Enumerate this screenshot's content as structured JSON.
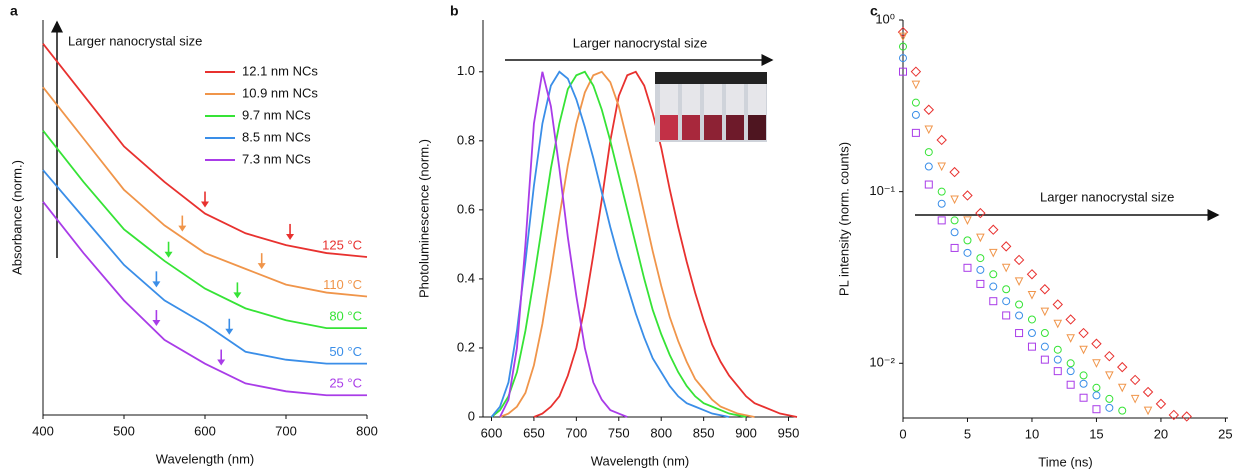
{
  "chart_data": [
    {
      "panel": "a",
      "type": "line",
      "xlabel": "Wavelength (nm)",
      "ylabel": "Absorbance (norm.)",
      "annotation": "Larger nanocrystal size",
      "legend": "upper right",
      "xlim": [
        400,
        800
      ],
      "xticks": [
        400,
        500,
        600,
        700,
        800
      ],
      "ylim": [
        0,
        1
      ],
      "x": [
        400,
        450,
        500,
        550,
        600,
        650,
        700,
        750,
        800
      ],
      "series": [
        {
          "name": "12.1 nm NCs",
          "label": "125 °C",
          "color": "#e8312f",
          "values": [
            0.94,
            0.81,
            0.68,
            0.59,
            0.51,
            0.46,
            0.43,
            0.41,
            0.4
          ],
          "features": [
            600,
            705
          ]
        },
        {
          "name": "10.9 nm NCs",
          "label": "110 °C",
          "color": "#f0954a",
          "values": [
            0.83,
            0.7,
            0.57,
            0.48,
            0.41,
            0.37,
            0.33,
            0.31,
            0.3
          ],
          "features": [
            572,
            670
          ]
        },
        {
          "name": "9.7 nm NCs",
          "label": "80 °C",
          "color": "#36e336",
          "values": [
            0.72,
            0.59,
            0.47,
            0.39,
            0.32,
            0.27,
            0.24,
            0.22,
            0.22
          ],
          "features": [
            555,
            640
          ]
        },
        {
          "name": "8.5 nm NCs",
          "label": "50 °C",
          "color": "#3a8ee8",
          "values": [
            0.62,
            0.5,
            0.38,
            0.29,
            0.23,
            0.16,
            0.14,
            0.13,
            0.13
          ],
          "features": [
            540,
            630
          ]
        },
        {
          "name": "7.3 nm NCs",
          "label": "25 °C",
          "color": "#a93ce8",
          "values": [
            0.54,
            0.41,
            0.29,
            0.19,
            0.13,
            0.08,
            0.06,
            0.05,
            0.05
          ],
          "features": [
            540,
            620
          ]
        }
      ]
    },
    {
      "panel": "b",
      "type": "line",
      "xlabel": "Wavelength (nm)",
      "ylabel": "Photoluminescence (norm.)",
      "annotation": "Larger nanocrystal size",
      "xlim": [
        590,
        960
      ],
      "xticks": [
        600,
        650,
        700,
        750,
        800,
        850,
        900,
        950
      ],
      "ylim": [
        0,
        1.15
      ],
      "yticks": [
        0,
        0.2,
        0.4,
        0.6,
        0.8,
        {
          "value": 1,
          "label": "1.0"
        }
      ],
      "x": [
        600,
        610,
        620,
        630,
        640,
        650,
        660,
        670,
        680,
        690,
        700,
        710,
        720,
        730,
        740,
        750,
        760,
        770,
        780,
        790,
        800,
        810,
        820,
        830,
        840,
        850,
        860,
        870,
        880,
        890,
        900,
        910,
        920,
        930,
        940,
        950,
        960
      ],
      "series": [
        {
          "color": "#e8312f",
          "values": [
            null,
            null,
            null,
            null,
            null,
            0.0,
            0.01,
            0.03,
            0.06,
            0.12,
            0.2,
            0.32,
            0.47,
            0.63,
            0.8,
            0.93,
            0.99,
            1.0,
            0.96,
            0.88,
            0.78,
            0.66,
            0.55,
            0.45,
            0.36,
            0.28,
            0.21,
            0.16,
            0.12,
            0.09,
            0.06,
            0.04,
            0.03,
            0.02,
            0.01,
            0.005,
            0.0
          ]
        },
        {
          "color": "#f0954a",
          "values": [
            null,
            0.0,
            0.01,
            0.03,
            0.07,
            0.15,
            0.27,
            0.42,
            0.58,
            0.73,
            0.85,
            0.94,
            0.99,
            1.0,
            0.97,
            0.9,
            0.8,
            0.7,
            0.59,
            0.48,
            0.38,
            0.29,
            0.22,
            0.16,
            0.11,
            0.08,
            0.05,
            0.03,
            0.02,
            0.01,
            0.005,
            0.0,
            null,
            null,
            null,
            null,
            null
          ]
        },
        {
          "color": "#36e336",
          "values": [
            0.0,
            0.02,
            0.06,
            0.13,
            0.25,
            0.4,
            0.56,
            0.72,
            0.85,
            0.95,
            0.99,
            1.0,
            0.96,
            0.89,
            0.8,
            0.7,
            0.6,
            0.5,
            0.4,
            0.31,
            0.24,
            0.18,
            0.13,
            0.09,
            0.06,
            0.04,
            0.03,
            0.02,
            0.01,
            0.005,
            0.0,
            null,
            null,
            null,
            null,
            null,
            null
          ]
        },
        {
          "color": "#3a8ee8",
          "values": [
            0.0,
            0.03,
            0.1,
            0.25,
            0.45,
            0.67,
            0.85,
            0.96,
            1.0,
            0.98,
            0.92,
            0.84,
            0.75,
            0.65,
            0.55,
            0.46,
            0.38,
            0.3,
            0.23,
            0.17,
            0.13,
            0.09,
            0.06,
            0.04,
            0.03,
            0.02,
            0.01,
            0.005,
            0.0,
            null,
            null,
            null,
            null,
            null,
            null,
            null,
            null
          ]
        },
        {
          "color": "#a93ce8",
          "values": [
            null,
            0.0,
            0.05,
            0.2,
            0.5,
            0.85,
            1.0,
            0.9,
            0.72,
            0.52,
            0.35,
            0.2,
            0.1,
            0.05,
            0.02,
            0.01,
            0.0,
            null,
            null,
            null,
            null,
            null,
            null,
            null,
            null,
            null,
            null,
            null,
            null,
            null,
            null,
            null,
            null,
            null,
            null,
            null,
            null
          ]
        }
      ]
    },
    {
      "panel": "c",
      "type": "scatter",
      "xlabel": "Time (ns)",
      "ylabel": "PL intensity (norm. counts)",
      "annotation": "Larger nanocrystal size",
      "log_y": true,
      "xlim": [
        0,
        25.2
      ],
      "xticks": [
        0,
        5,
        10,
        15,
        20,
        25
      ],
      "ylim": [
        0.0048,
        1
      ],
      "yticks": [
        {
          "value": 1,
          "label": "10⁰"
        },
        {
          "value": 0.1,
          "label": "10⁻¹"
        },
        {
          "value": 0.01,
          "label": "10⁻²"
        }
      ],
      "series": [
        {
          "color": "#e8312f",
          "marker": "diamond",
          "x": [
            0,
            1,
            2,
            3,
            4,
            5,
            6,
            7,
            8,
            9,
            10,
            11,
            12,
            13,
            14,
            15,
            16,
            17,
            18,
            19,
            20,
            21,
            22
          ],
          "values": [
            0.85,
            0.5,
            0.3,
            0.2,
            0.13,
            0.095,
            0.075,
            0.06,
            0.048,
            0.04,
            0.033,
            0.027,
            0.022,
            0.018,
            0.015,
            0.013,
            0.011,
            0.0095,
            0.008,
            0.0068,
            0.0058,
            0.005,
            0.0049
          ]
        },
        {
          "color": "#f0954a",
          "marker": "triangle",
          "x": [
            0,
            1,
            2,
            3,
            4,
            5,
            6,
            7,
            8,
            9,
            10,
            11,
            12,
            13,
            14,
            15,
            16,
            17,
            18,
            19
          ],
          "values": [
            0.8,
            0.42,
            0.23,
            0.14,
            0.09,
            0.068,
            0.054,
            0.044,
            0.036,
            0.03,
            0.025,
            0.02,
            0.017,
            0.014,
            0.012,
            0.01,
            0.0085,
            0.0072,
            0.0062,
            0.0053
          ]
        },
        {
          "color": "#36e336",
          "marker": "circle",
          "x": [
            0,
            1,
            2,
            3,
            4,
            5,
            6,
            7,
            8,
            9,
            10,
            11,
            12,
            13,
            14,
            15,
            16,
            17
          ],
          "values": [
            0.7,
            0.33,
            0.17,
            0.1,
            0.068,
            0.052,
            0.041,
            0.033,
            0.027,
            0.022,
            0.018,
            0.015,
            0.012,
            0.01,
            0.0085,
            0.0072,
            0.0062,
            0.0053
          ]
        },
        {
          "color": "#3a8ee8",
          "marker": "circle",
          "x": [
            0,
            1,
            2,
            3,
            4,
            5,
            6,
            7,
            8,
            9,
            10,
            11,
            12,
            13,
            14,
            15,
            16
          ],
          "values": [
            0.6,
            0.28,
            0.14,
            0.085,
            0.058,
            0.044,
            0.035,
            0.028,
            0.023,
            0.019,
            0.015,
            0.0125,
            0.0105,
            0.009,
            0.0076,
            0.0065,
            0.0055
          ]
        },
        {
          "color": "#a93ce8",
          "marker": "square",
          "x": [
            0,
            1,
            2,
            3,
            4,
            5,
            6,
            7,
            8,
            9,
            10,
            11,
            12,
            13,
            14,
            15
          ],
          "values": [
            0.5,
            0.22,
            0.11,
            0.068,
            0.047,
            0.036,
            0.029,
            0.023,
            0.019,
            0.015,
            0.0125,
            0.0105,
            0.009,
            0.0075,
            0.0063,
            0.0054
          ]
        }
      ]
    }
  ]
}
